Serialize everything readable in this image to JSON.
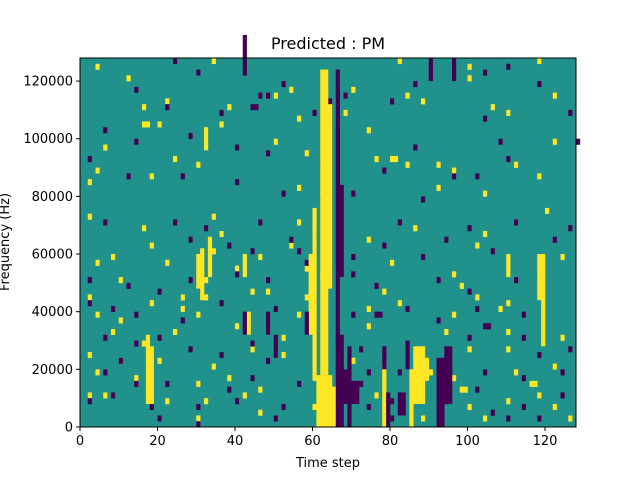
{
  "chart_data": {
    "type": "heatmap",
    "title": "Predicted : PM",
    "xlabel": "Time step",
    "ylabel": "Frequency (Hz)",
    "xlim": [
      0,
      128
    ],
    "ylim": [
      0,
      128000
    ],
    "x_ticks": [
      0,
      20,
      40,
      60,
      80,
      100,
      120
    ],
    "y_ticks": [
      0,
      20000,
      40000,
      60000,
      80000,
      100000,
      120000
    ],
    "colormap": "viridis",
    "colors": {
      "low": "#440154",
      "mid": "#21918c",
      "high": "#fde725"
    },
    "grid": false,
    "legend": "none",
    "value_levels": [
      -1,
      0,
      1
    ],
    "background_value": 0,
    "high_cells": [
      [
        4,
        124000
      ],
      [
        12,
        120000
      ],
      [
        34,
        126000
      ],
      [
        82,
        126000
      ],
      [
        100,
        124000
      ],
      [
        100,
        120000
      ],
      [
        118,
        126000
      ],
      [
        50,
        114000
      ],
      [
        54,
        116000
      ],
      [
        70,
        116000
      ],
      [
        84,
        114000
      ],
      [
        106,
        110000
      ],
      [
        122,
        114000
      ],
      [
        16,
        110000
      ],
      [
        22,
        112000
      ],
      [
        38,
        110000
      ],
      [
        68,
        108000
      ],
      [
        88,
        112000
      ],
      [
        110,
        108000
      ],
      [
        20,
        104000
      ],
      [
        36,
        104000
      ],
      [
        56,
        106000
      ],
      [
        74,
        102000
      ],
      [
        122,
        98000
      ],
      [
        6,
        96000
      ],
      [
        24,
        92000
      ],
      [
        50,
        98000
      ],
      [
        58,
        94000
      ],
      [
        76,
        92000
      ],
      [
        92,
        90000
      ],
      [
        4,
        88000
      ],
      [
        18,
        86000
      ],
      [
        30,
        90000
      ],
      [
        84,
        90000
      ],
      [
        96,
        88000
      ],
      [
        112,
        90000
      ],
      [
        118,
        86000
      ],
      [
        2,
        84000
      ],
      [
        56,
        82000
      ],
      [
        92,
        82000
      ],
      [
        104,
        80000
      ],
      [
        2,
        72000
      ],
      [
        16,
        68000
      ],
      [
        34,
        72000
      ],
      [
        36,
        66000
      ],
      [
        56,
        70000
      ],
      [
        86,
        68000
      ],
      [
        104,
        66000
      ],
      [
        120,
        74000
      ],
      [
        18,
        62000
      ],
      [
        34,
        60000
      ],
      [
        54,
        62000
      ],
      [
        74,
        64000
      ],
      [
        102,
        62000
      ],
      [
        124,
        58000
      ],
      [
        4,
        56000
      ],
      [
        8,
        58000
      ],
      [
        22,
        56000
      ],
      [
        40,
        54000
      ],
      [
        46,
        58000
      ],
      [
        58,
        54000
      ],
      [
        80,
        56000
      ],
      [
        96,
        52000
      ],
      [
        10,
        50000
      ],
      [
        32,
        50000
      ],
      [
        48,
        46000
      ],
      [
        62,
        52000
      ],
      [
        98,
        48000
      ],
      [
        2,
        44000
      ],
      [
        18,
        42000
      ],
      [
        26,
        44000
      ],
      [
        32,
        44000
      ],
      [
        44,
        46000
      ],
      [
        58,
        44000
      ],
      [
        78,
        46000
      ],
      [
        82,
        42000
      ],
      [
        102,
        44000
      ],
      [
        110,
        42000
      ],
      [
        4,
        38000
      ],
      [
        10,
        36000
      ],
      [
        26,
        40000
      ],
      [
        30,
        38000
      ],
      [
        56,
        38000
      ],
      [
        74,
        40000
      ],
      [
        96,
        38000
      ],
      [
        108,
        40000
      ],
      [
        8,
        32000
      ],
      [
        16,
        28000
      ],
      [
        24,
        32000
      ],
      [
        40,
        34000
      ],
      [
        52,
        30000
      ],
      [
        74,
        34000
      ],
      [
        94,
        32000
      ],
      [
        110,
        32000
      ],
      [
        2,
        24000
      ],
      [
        10,
        22000
      ],
      [
        20,
        22000
      ],
      [
        34,
        20000
      ],
      [
        44,
        26000
      ],
      [
        52,
        24000
      ],
      [
        70,
        22000
      ],
      [
        86,
        24000
      ],
      [
        100,
        26000
      ],
      [
        110,
        26000
      ],
      [
        124,
        30000
      ],
      [
        4,
        18000
      ],
      [
        14,
        16000
      ],
      [
        30,
        14000
      ],
      [
        38,
        16000
      ],
      [
        46,
        12000
      ],
      [
        64,
        14000
      ],
      [
        90,
        18000
      ],
      [
        96,
        16000
      ],
      [
        112,
        18000
      ],
      [
        122,
        20000
      ],
      [
        2,
        10000
      ],
      [
        6,
        10000
      ],
      [
        22,
        8000
      ],
      [
        32,
        8000
      ],
      [
        42,
        10000
      ],
      [
        60,
        6000
      ],
      [
        76,
        10000
      ],
      [
        86,
        10000
      ],
      [
        100,
        6000
      ],
      [
        110,
        8000
      ],
      [
        118,
        10000
      ],
      [
        122,
        6000
      ],
      [
        30,
        2000
      ],
      [
        46,
        4000
      ],
      [
        88,
        2000
      ],
      [
        104,
        2000
      ],
      [
        126,
        2000
      ],
      [
        16,
        104000
      ],
      [
        17,
        104000
      ],
      [
        80,
        92000
      ],
      [
        81,
        92000
      ],
      [
        98,
        12000
      ],
      [
        99,
        12000
      ],
      [
        116,
        14000
      ],
      [
        117,
        14000
      ]
    ],
    "high_spans": [
      [
        61,
        0,
        9
      ],
      [
        62,
        0,
        62
      ],
      [
        63,
        0,
        62
      ],
      [
        64,
        0,
        9
      ],
      [
        65,
        0,
        7
      ],
      [
        60,
        8,
        38
      ],
      [
        59,
        16,
        30
      ],
      [
        64,
        24,
        56
      ],
      [
        78,
        0,
        11
      ],
      [
        85,
        0,
        10
      ],
      [
        86,
        4,
        14
      ],
      [
        87,
        4,
        14
      ],
      [
        88,
        4,
        14
      ],
      [
        89,
        8,
        12
      ],
      [
        30,
        24,
        30
      ],
      [
        31,
        22,
        31
      ],
      [
        17,
        4,
        16
      ],
      [
        18,
        4,
        14
      ],
      [
        43,
        16,
        20
      ],
      [
        42,
        26,
        30
      ],
      [
        33,
        26,
        33
      ],
      [
        32,
        48,
        52
      ],
      [
        119,
        14,
        26
      ],
      [
        118,
        22,
        30
      ],
      [
        119,
        26,
        30
      ],
      [
        110,
        26,
        30
      ]
    ],
    "low_cells": [
      [
        24,
        126000
      ],
      [
        30,
        122000
      ],
      [
        42,
        122000
      ],
      [
        46,
        114000
      ],
      [
        48,
        114000
      ],
      [
        52,
        118000
      ],
      [
        66,
        114000
      ],
      [
        80,
        112000
      ],
      [
        86,
        118000
      ],
      [
        104,
        122000
      ],
      [
        110,
        124000
      ],
      [
        118,
        118000
      ],
      [
        126,
        108000
      ],
      [
        14,
        116000
      ],
      [
        22,
        110000
      ],
      [
        36,
        108000
      ],
      [
        60,
        108000
      ],
      [
        64,
        112000
      ],
      [
        68,
        114000
      ],
      [
        104,
        106000
      ],
      [
        108,
        98000
      ],
      [
        128,
        98000
      ],
      [
        6,
        102000
      ],
      [
        14,
        98000
      ],
      [
        28,
        100000
      ],
      [
        40,
        96000
      ],
      [
        48,
        94000
      ],
      [
        62,
        90000
      ],
      [
        78,
        88000
      ],
      [
        86,
        96000
      ],
      [
        96,
        86000
      ],
      [
        110,
        92000
      ],
      [
        2,
        92000
      ],
      [
        12,
        86000
      ],
      [
        26,
        86000
      ],
      [
        40,
        84000
      ],
      [
        52,
        80000
      ],
      [
        62,
        78000
      ],
      [
        70,
        80000
      ],
      [
        88,
        78000
      ],
      [
        102,
        86000
      ],
      [
        6,
        70000
      ],
      [
        24,
        70000
      ],
      [
        32,
        68000
      ],
      [
        46,
        70000
      ],
      [
        54,
        64000
      ],
      [
        60,
        66000
      ],
      [
        82,
        70000
      ],
      [
        94,
        64000
      ],
      [
        100,
        68000
      ],
      [
        112,
        70000
      ],
      [
        126,
        68000
      ],
      [
        28,
        64000
      ],
      [
        38,
        62000
      ],
      [
        44,
        60000
      ],
      [
        56,
        60000
      ],
      [
        70,
        58000
      ],
      [
        78,
        62000
      ],
      [
        88,
        58000
      ],
      [
        106,
        60000
      ],
      [
        122,
        64000
      ],
      [
        2,
        50000
      ],
      [
        12,
        48000
      ],
      [
        20,
        46000
      ],
      [
        28,
        50000
      ],
      [
        40,
        52000
      ],
      [
        48,
        50000
      ],
      [
        58,
        56000
      ],
      [
        70,
        52000
      ],
      [
        76,
        48000
      ],
      [
        92,
        50000
      ],
      [
        100,
        46000
      ],
      [
        112,
        50000
      ],
      [
        2,
        42000
      ],
      [
        8,
        40000
      ],
      [
        14,
        38000
      ],
      [
        26,
        36000
      ],
      [
        36,
        42000
      ],
      [
        50,
        40000
      ],
      [
        70,
        38000
      ],
      [
        84,
        40000
      ],
      [
        92,
        36000
      ],
      [
        102,
        40000
      ],
      [
        114,
        38000
      ],
      [
        6,
        30000
      ],
      [
        14,
        28000
      ],
      [
        20,
        30000
      ],
      [
        28,
        26000
      ],
      [
        44,
        28000
      ],
      [
        66,
        30000
      ],
      [
        72,
        26000
      ],
      [
        84,
        28000
      ],
      [
        100,
        30000
      ],
      [
        114,
        30000
      ],
      [
        126,
        26000
      ],
      [
        10,
        22000
      ],
      [
        18,
        20000
      ],
      [
        36,
        24000
      ],
      [
        48,
        22000
      ],
      [
        66,
        20000
      ],
      [
        74,
        18000
      ],
      [
        86,
        20000
      ],
      [
        104,
        18000
      ],
      [
        118,
        24000
      ],
      [
        6,
        18000
      ],
      [
        14,
        14000
      ],
      [
        22,
        14000
      ],
      [
        38,
        12000
      ],
      [
        44,
        16000
      ],
      [
        56,
        14000
      ],
      [
        72,
        14000
      ],
      [
        82,
        18000
      ],
      [
        92,
        16000
      ],
      [
        102,
        12000
      ],
      [
        114,
        16000
      ],
      [
        124,
        18000
      ],
      [
        2,
        8000
      ],
      [
        8,
        10000
      ],
      [
        18,
        6000
      ],
      [
        30,
        6000
      ],
      [
        40,
        8000
      ],
      [
        52,
        6000
      ],
      [
        64,
        4000
      ],
      [
        74,
        6000
      ],
      [
        80,
        8000
      ],
      [
        94,
        8000
      ],
      [
        106,
        4000
      ],
      [
        114,
        6000
      ],
      [
        124,
        10000
      ],
      [
        20,
        2000
      ],
      [
        30,
        0
      ],
      [
        50,
        2000
      ],
      [
        62,
        2000
      ],
      [
        80,
        2000
      ],
      [
        92,
        4000
      ],
      [
        110,
        2000
      ],
      [
        118,
        2000
      ],
      [
        44,
        110000
      ],
      [
        45,
        110000
      ],
      [
        76,
        38000
      ],
      [
        77,
        38000
      ],
      [
        104,
        34000
      ],
      [
        105,
        34000
      ]
    ],
    "low_spans": [
      [
        66,
        0,
        62
      ],
      [
        67,
        0,
        16
      ],
      [
        68,
        4,
        10
      ],
      [
        69,
        0,
        14
      ],
      [
        70,
        4,
        8
      ],
      [
        71,
        4,
        8
      ],
      [
        66,
        28,
        52
      ],
      [
        67,
        26,
        42
      ],
      [
        78,
        10,
        14
      ],
      [
        79,
        0,
        6
      ],
      [
        82,
        2,
        6
      ],
      [
        83,
        2,
        6
      ],
      [
        84,
        10,
        14
      ],
      [
        92,
        0,
        12
      ],
      [
        93,
        0,
        12
      ],
      [
        94,
        4,
        14
      ],
      [
        95,
        4,
        14
      ],
      [
        48,
        16,
        20
      ],
      [
        42,
        16,
        20
      ],
      [
        58,
        16,
        20
      ],
      [
        50,
        12,
        16
      ],
      [
        42,
        62,
        68
      ],
      [
        90,
        60,
        64
      ],
      [
        96,
        60,
        64
      ]
    ]
  }
}
